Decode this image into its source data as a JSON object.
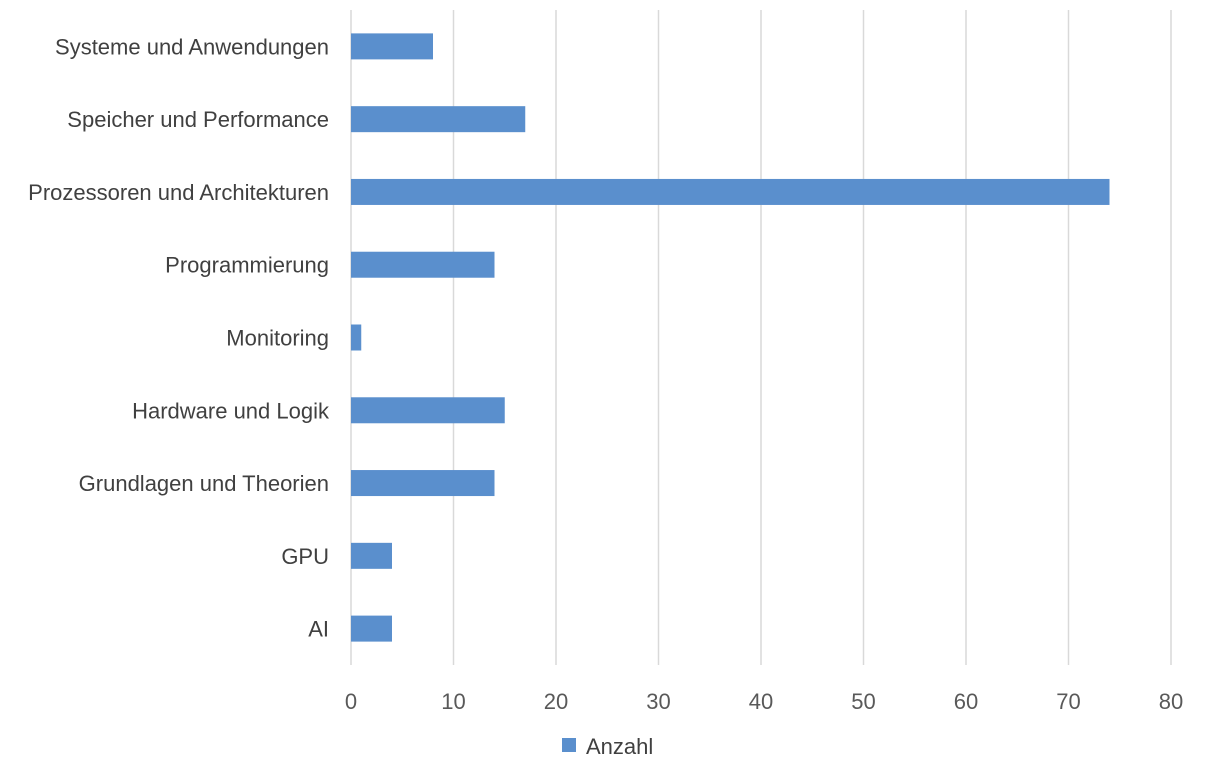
{
  "chart_data": {
    "type": "bar",
    "orientation": "horizontal",
    "categories": [
      "Systeme und Anwendungen",
      "Speicher und Performance",
      "Prozessoren und Architekturen",
      "Programmierung",
      "Monitoring",
      "Hardware und Logik",
      "Grundlagen und Theorien",
      "GPU",
      "AI"
    ],
    "series": [
      {
        "name": "Anzahl",
        "values": [
          8,
          17,
          74,
          14,
          1,
          15,
          14,
          4,
          4
        ],
        "color": "#5a8fcd"
      }
    ],
    "xlim": [
      0,
      80
    ],
    "xticks": [
      0,
      10,
      20,
      30,
      40,
      50,
      60,
      70,
      80
    ],
    "grid": "vertical",
    "legend_position": "bottom-center",
    "title": "",
    "xlabel": "",
    "ylabel": ""
  }
}
